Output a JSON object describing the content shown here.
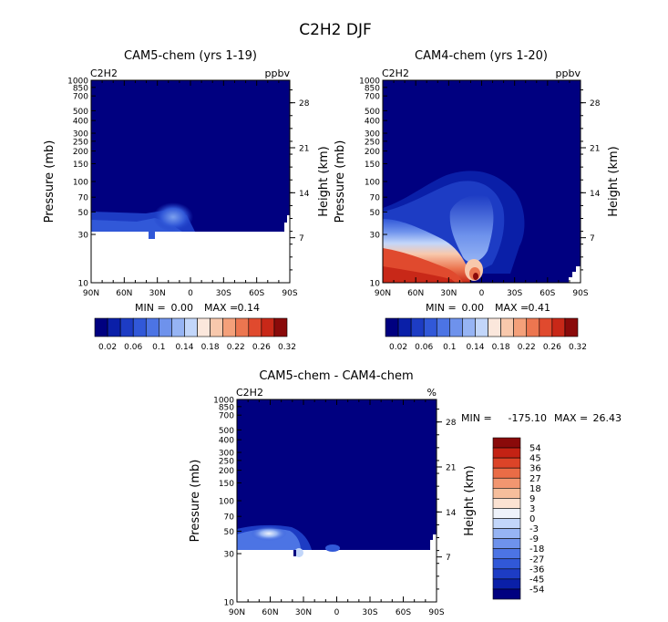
{
  "figure_title": "C2H2 DJF",
  "colors": {
    "bg_fill": "#000080",
    "upper_scale": [
      "#000080",
      "#0A1FA8",
      "#1D3CC4",
      "#3158D8",
      "#4C74E4",
      "#6E92EC",
      "#96B4F4",
      "#C2D6FA",
      "#FBE7DC",
      "#F8C8AC",
      "#F4A07A",
      "#EC7650",
      "#E04A2E",
      "#C82818",
      "#8A0A0A"
    ],
    "diff_scale": [
      "#000080",
      "#0A1FA8",
      "#1D3CC4",
      "#3158D8",
      "#4C74E4",
      "#6E92EC",
      "#96B4F4",
      "#C2D6FA",
      "#EEF2FA",
      "#FBE2D2",
      "#F6BE9C",
      "#F29670",
      "#EA6C46",
      "#DC4428",
      "#C42214",
      "#8A0A0A"
    ]
  },
  "chart_data": [
    {
      "type": "contour",
      "title": "CAM5-chem (yrs 1-19)",
      "species": "C2H2",
      "units": "ppbv",
      "ylabel": "Pressure (mb)",
      "ylabel_right": "Height (km)",
      "x_ticks": [
        "90N",
        "60N",
        "30N",
        "0",
        "30S",
        "60S",
        "90S"
      ],
      "x_values": [
        90,
        60,
        30,
        0,
        -30,
        -60,
        -90
      ],
      "y_ticks": [
        "10",
        "30",
        "50",
        "70",
        "100",
        "150",
        "200",
        "250",
        "300",
        "400",
        "500",
        "700",
        "850",
        "1000"
      ],
      "y_values": [
        10,
        30,
        50,
        70,
        100,
        150,
        200,
        250,
        300,
        400,
        500,
        700,
        850,
        1000
      ],
      "ylim": [
        1000,
        10
      ],
      "xlim": [
        90,
        -90
      ],
      "height_ticks": [
        "28",
        "21",
        "14",
        "7"
      ],
      "height_values": [
        28,
        21,
        14,
        7
      ],
      "min_label": "MIN =",
      "min_value": "0.00",
      "max_label": "MAX =",
      "max_value": "0.14",
      "colorbar_labels": [
        "0.02",
        "0.06",
        "0.1",
        "0.14",
        "0.18",
        "0.22",
        "0.26",
        "0.32"
      ]
    },
    {
      "type": "contour",
      "title": "CAM4-chem (yrs 1-20)",
      "species": "C2H2",
      "units": "ppbv",
      "ylabel": "Pressure (mb)",
      "ylabel_right": "Height (km)",
      "x_ticks": [
        "90N",
        "60N",
        "30N",
        "0",
        "30S",
        "60S",
        "90S"
      ],
      "x_values": [
        90,
        60,
        30,
        0,
        -30,
        -60,
        -90
      ],
      "y_ticks": [
        "10",
        "30",
        "50",
        "70",
        "100",
        "150",
        "200",
        "250",
        "300",
        "400",
        "500",
        "700",
        "850",
        "1000"
      ],
      "y_values": [
        10,
        30,
        50,
        70,
        100,
        150,
        200,
        250,
        300,
        400,
        500,
        700,
        850,
        1000
      ],
      "ylim": [
        1000,
        10
      ],
      "xlim": [
        90,
        -90
      ],
      "height_ticks": [
        "28",
        "21",
        "14",
        "7"
      ],
      "height_values": [
        28,
        21,
        14,
        7
      ],
      "min_label": "MIN =",
      "min_value": "0.00",
      "max_label": "MAX =",
      "max_value": "0.41",
      "colorbar_labels": [
        "0.02",
        "0.06",
        "0.1",
        "0.14",
        "0.18",
        "0.22",
        "0.26",
        "0.32"
      ]
    },
    {
      "type": "contour",
      "title": "CAM5-chem - CAM4-chem",
      "species": "C2H2",
      "units": "%",
      "ylabel": "Pressure (mb)",
      "ylabel_right": "Height (km)",
      "x_ticks": [
        "90N",
        "60N",
        "30N",
        "0",
        "30S",
        "60S",
        "90S"
      ],
      "x_values": [
        90,
        60,
        30,
        0,
        -30,
        -60,
        -90
      ],
      "y_ticks": [
        "10",
        "30",
        "50",
        "70",
        "100",
        "150",
        "200",
        "250",
        "300",
        "400",
        "500",
        "700",
        "850",
        "1000"
      ],
      "y_values": [
        10,
        30,
        50,
        70,
        100,
        150,
        200,
        250,
        300,
        400,
        500,
        700,
        850,
        1000
      ],
      "ylim": [
        1000,
        10
      ],
      "xlim": [
        90,
        -90
      ],
      "height_ticks": [
        "28",
        "21",
        "14",
        "7"
      ],
      "height_values": [
        28,
        21,
        14,
        7
      ],
      "min_label": "MIN =",
      "min_value": "-175.10",
      "max_label": "MAX =",
      "max_value": "26.43",
      "colorbar_labels": [
        "54",
        "45",
        "36",
        "27",
        "18",
        "9",
        "3",
        "0",
        "-3",
        "-9",
        "-18",
        "-27",
        "-36",
        "-45",
        "-54"
      ]
    }
  ]
}
